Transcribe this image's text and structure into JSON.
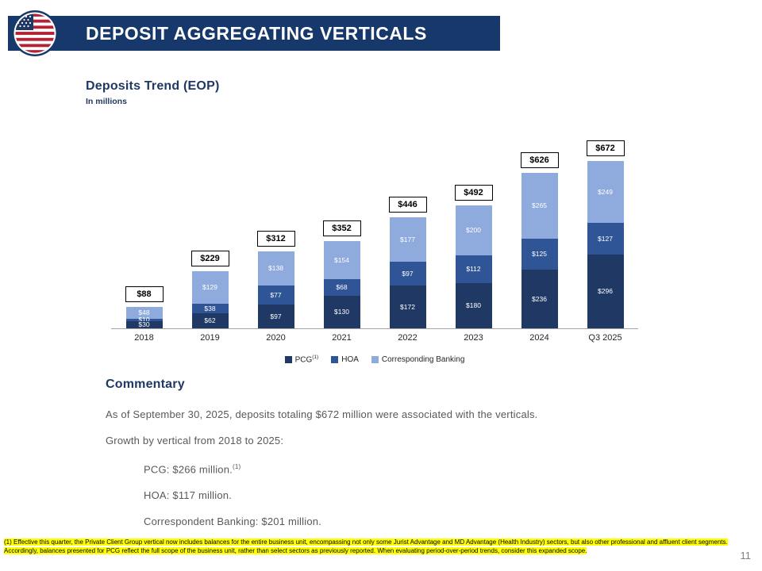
{
  "slide": {
    "page_number": "11"
  },
  "header": {
    "title": "DEPOSIT AGGREGATING VERTICALS",
    "logo_icon": "us-flag-icon",
    "bg_color": "#17386a"
  },
  "chart": {
    "title": "Deposits Trend (EOP)",
    "subtitle": "In millions"
  },
  "chart_data": {
    "type": "bar",
    "stacked": true,
    "title": "Deposits Trend (EOP)",
    "units": "In millions",
    "categories": [
      "2018",
      "2019",
      "2020",
      "2021",
      "2022",
      "2023",
      "2024",
      "Q3 2025"
    ],
    "series": [
      {
        "name": "PCG",
        "superscript": "(1)",
        "color": "#1f3864",
        "values": [
          30,
          62,
          97,
          130,
          172,
          180,
          236,
          296
        ]
      },
      {
        "name": "HOA",
        "color": "#2f5597",
        "values": [
          10,
          38,
          77,
          68,
          97,
          112,
          125,
          127
        ]
      },
      {
        "name": "Corresponding Banking",
        "color": "#8faadc",
        "values": [
          48,
          129,
          138,
          154,
          177,
          200,
          265,
          249
        ]
      }
    ],
    "totals": [
      88,
      229,
      312,
      352,
      446,
      492,
      626,
      672
    ],
    "value_prefix": "$",
    "ylim": [
      0,
      700
    ],
    "grid": false,
    "legend_position": "bottom"
  },
  "commentary": {
    "title": "Commentary",
    "para1": "As of September 30, 2025, deposits totaling $672 million were associated with the verticals.",
    "para2": "Growth by vertical from 2018 to 2025:",
    "item1": "PCG: $266 million.",
    "item1_sup": "(1)",
    "item2": "HOA: $117 million.",
    "item3": "Correspondent Banking: $201 million."
  },
  "footnote": {
    "text": "(1) Effective this quarter, the Private Client Group vertical now includes balances for the entire business unit, encompassing not only some Jurist Advantage and MD Advantage (Health Industry) sectors, but also other professional and affluent client segments. Accordingly, balances presented for PCG reflect the full scope of the business unit, rather than select sectors as previously reported. When evaluating period-over-period trends, consider this expanded scope.",
    "highlight_color": "#ffff00"
  }
}
